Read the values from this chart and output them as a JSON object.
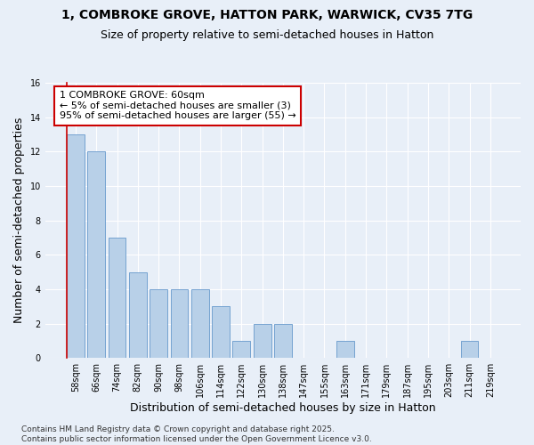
{
  "title": "1, COMBROKE GROVE, HATTON PARK, WARWICK, CV35 7TG",
  "subtitle": "Size of property relative to semi-detached houses in Hatton",
  "xlabel": "Distribution of semi-detached houses by size in Hatton",
  "ylabel": "Number of semi-detached properties",
  "footer_line1": "Contains HM Land Registry data © Crown copyright and database right 2025.",
  "footer_line2": "Contains public sector information licensed under the Open Government Licence v3.0.",
  "categories": [
    "58sqm",
    "66sqm",
    "74sqm",
    "82sqm",
    "90sqm",
    "98sqm",
    "106sqm",
    "114sqm",
    "122sqm",
    "130sqm",
    "138sqm",
    "147sqm",
    "155sqm",
    "163sqm",
    "171sqm",
    "179sqm",
    "187sqm",
    "195sqm",
    "203sqm",
    "211sqm",
    "219sqm"
  ],
  "values": [
    13,
    12,
    7,
    5,
    4,
    4,
    4,
    3,
    1,
    2,
    2,
    0,
    0,
    1,
    0,
    0,
    0,
    0,
    0,
    1,
    0
  ],
  "bar_color": "#b8d0e8",
  "bar_edge_color": "#6699cc",
  "highlight_line_color": "#cc0000",
  "annotation_title": "1 COMBROKE GROVE: 60sqm",
  "annotation_line1": "← 5% of semi-detached houses are smaller (3)",
  "annotation_line2": "95% of semi-detached houses are larger (55) →",
  "annotation_box_color": "#cc0000",
  "ylim": [
    0,
    16
  ],
  "yticks": [
    0,
    2,
    4,
    6,
    8,
    10,
    12,
    14,
    16
  ],
  "background_color": "#e8eff8",
  "grid_color": "#ffffff",
  "title_fontsize": 10,
  "subtitle_fontsize": 9,
  "axis_label_fontsize": 9,
  "tick_fontsize": 7,
  "annotation_fontsize": 8,
  "footer_fontsize": 6.5
}
